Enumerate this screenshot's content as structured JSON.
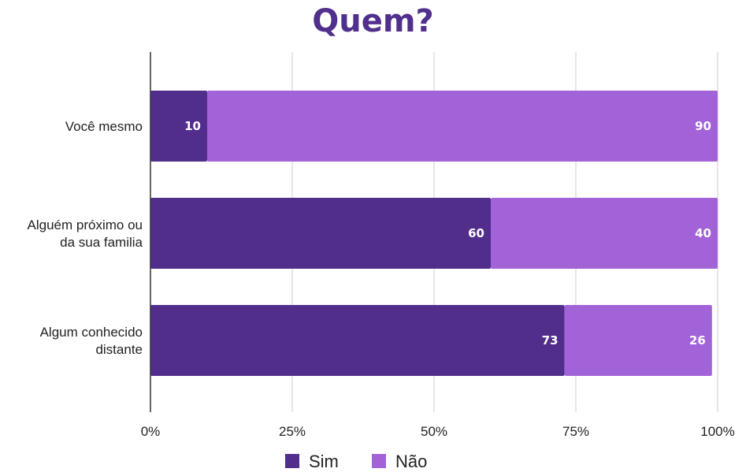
{
  "chart_data": {
    "type": "bar",
    "orientation": "horizontal",
    "stacked": true,
    "title": "Quem?",
    "categories": [
      [
        "Você mesmo"
      ],
      [
        "Alguém próximo ou",
        "da sua familia"
      ],
      [
        "Algum conhecido",
        "distante"
      ]
    ],
    "series": [
      {
        "name": "Sim",
        "values": [
          10,
          60,
          73
        ],
        "labels": [
          "10",
          "60",
          "73"
        ],
        "color": "#522e8c"
      },
      {
        "name": "Não",
        "values": [
          90,
          40,
          26
        ],
        "labels": [
          "90",
          "40",
          "26"
        ],
        "color": "#a262d8"
      }
    ],
    "xlim": [
      0,
      100
    ],
    "xticks": [
      {
        "value": 0,
        "label": "0%"
      },
      {
        "value": 25,
        "label": "25%"
      },
      {
        "value": 50,
        "label": "50%"
      },
      {
        "value": 75,
        "label": "75%"
      },
      {
        "value": 100,
        "label": "100%"
      }
    ],
    "grid": true,
    "legend_position": "bottom",
    "grid_color": "#cccccc",
    "axis_color": "#333333"
  }
}
